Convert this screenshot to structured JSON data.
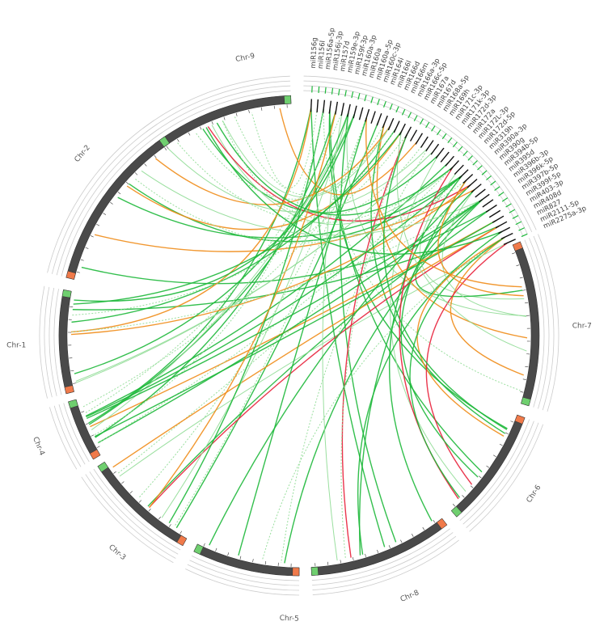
{
  "chromosomes": [
    {
      "id": "chr9",
      "label": "Chr-9"
    },
    {
      "id": "chr2",
      "label": "Chr-2"
    },
    {
      "id": "chr1",
      "label": "Chr-1"
    },
    {
      "id": "chr4",
      "label": "Chr-4"
    },
    {
      "id": "chr3",
      "label": "Chr-3"
    },
    {
      "id": "chr5",
      "label": "Chr-5"
    },
    {
      "id": "chr8",
      "label": "Chr-8"
    },
    {
      "id": "chr6",
      "label": "Chr-6"
    },
    {
      "id": "chr7",
      "label": "Chr-7"
    }
  ],
  "mirnas": [
    "miR156g",
    "miR156l",
    "miR156a-5p",
    "miR156j-3p",
    "miR157d",
    "miR159e-3p",
    "miR159f-3p",
    "miR160a-3p",
    "miR160a",
    "miR160a-5p",
    "miR160c-3p",
    "miR164i",
    "miR166l",
    "miR166d",
    "miR166m",
    "miR166a-3p",
    "miR166c-5p",
    "miR167a",
    "miR167d",
    "miR168a-5p",
    "miR169h",
    "miR171c-3p",
    "miR171k-3p",
    "miR172d-3p",
    "miR172a",
    "miR172L-3p",
    "miR172d-5p",
    "miR319h",
    "miR390a-3p",
    "miR390g",
    "miR394b-5p",
    "miR395d",
    "miR396b-3p",
    "miR396k-5p",
    "miR397b-5p",
    "miR399f-5p",
    "miR403-3p",
    "miR408d",
    "miR827",
    "miR2111-5p",
    "miR2275a-3p"
  ],
  "colors": {
    "chromosome": "#4a4a4a",
    "telomere_start": "#f07a4a",
    "telomere_end": "#6fcf6f",
    "link_green": "#1db83a",
    "link_lightgreen": "#8fdc95",
    "link_orange": "#f08c18",
    "link_red": "#e8203a",
    "ring": "#cccccc"
  }
}
